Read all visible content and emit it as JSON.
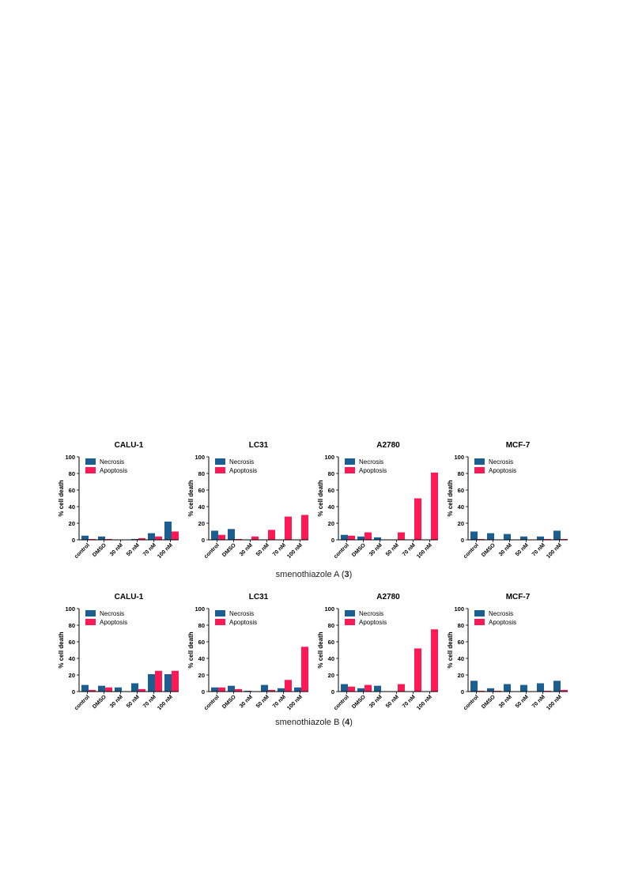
{
  "colors": {
    "necrosis": "#1b5e92",
    "apoptosis": "#ff1a55",
    "axis": "#000000"
  },
  "groups": [
    {
      "caption_text": "smenothiazole A (",
      "caption_bold": "3",
      "caption_close": ")"
    },
    {
      "caption_text": "smenothiazole B (",
      "caption_bold": "4",
      "caption_close": ")"
    }
  ],
  "chart_data": [
    {
      "type": "bar",
      "title": "CALU-1",
      "ylabel": "% cell death",
      "ylim": [
        0,
        100
      ],
      "yticks": [
        0,
        20,
        40,
        60,
        80,
        100
      ],
      "categories": [
        "control",
        "DMSO",
        "30 nM",
        "50 nM",
        "70 nM",
        "100 nM"
      ],
      "legend": "top-left",
      "series": [
        {
          "name": "Necrosis",
          "values": [
            5,
            4,
            0,
            1,
            8,
            22
          ]
        },
        {
          "name": "Apoptosis",
          "values": [
            1,
            1,
            0,
            2,
            4,
            10
          ]
        }
      ]
    },
    {
      "type": "bar",
      "title": "LC31",
      "ylabel": "% cell death",
      "ylim": [
        0,
        100
      ],
      "yticks": [
        0,
        20,
        40,
        60,
        80,
        100
      ],
      "categories": [
        "control",
        "DMSO",
        "30 nM",
        "50 nM",
        "70 nM",
        "100 nM"
      ],
      "legend": "top-left",
      "series": [
        {
          "name": "Necrosis",
          "values": [
            11,
            13,
            0,
            0,
            0,
            0
          ]
        },
        {
          "name": "Apoptosis",
          "values": [
            6,
            1,
            4,
            12,
            28,
            30
          ]
        }
      ]
    },
    {
      "type": "bar",
      "title": "A2780",
      "ylabel": "% cell death",
      "ylim": [
        0,
        100
      ],
      "yticks": [
        0,
        20,
        40,
        60,
        80,
        100
      ],
      "categories": [
        "control",
        "DMSO",
        "30 nM",
        "50 nM",
        "70 nM",
        "100 nM"
      ],
      "legend": "top-left",
      "series": [
        {
          "name": "Necrosis",
          "values": [
            6,
            4,
            3,
            0,
            0,
            0
          ]
        },
        {
          "name": "Apoptosis",
          "values": [
            5,
            9,
            0,
            9,
            50,
            81
          ]
        }
      ]
    },
    {
      "type": "bar",
      "title": "MCF-7",
      "ylabel": "% cell death",
      "ylim": [
        0,
        100
      ],
      "yticks": [
        0,
        20,
        40,
        60,
        80,
        100
      ],
      "categories": [
        "control",
        "DMSO",
        "30 nM",
        "50 nM",
        "70 nM",
        "100 nM"
      ],
      "legend": "top-left",
      "series": [
        {
          "name": "Necrosis",
          "values": [
            10,
            8,
            7,
            4,
            4,
            11
          ]
        },
        {
          "name": "Apoptosis",
          "values": [
            1,
            0,
            0,
            0,
            1,
            1
          ]
        }
      ]
    },
    {
      "type": "bar",
      "title": "CALU-1",
      "ylabel": "% cell death",
      "ylim": [
        0,
        100
      ],
      "yticks": [
        0,
        20,
        40,
        60,
        80,
        100
      ],
      "categories": [
        "control",
        "DMSO",
        "30 nM",
        "50 nM",
        "70 nM",
        "100 nM"
      ],
      "legend": "top-left",
      "series": [
        {
          "name": "Necrosis",
          "values": [
            8,
            7,
            5,
            10,
            21,
            21
          ]
        },
        {
          "name": "Apoptosis",
          "values": [
            2,
            5,
            0,
            3,
            25,
            25
          ]
        }
      ]
    },
    {
      "type": "bar",
      "title": "LC31",
      "ylabel": "% cell death",
      "ylim": [
        0,
        100
      ],
      "yticks": [
        0,
        20,
        40,
        60,
        80,
        100
      ],
      "categories": [
        "control",
        "DMSO",
        "30 nM",
        "50 nM",
        "70 nM",
        "100 nM"
      ],
      "legend": "top-left",
      "series": [
        {
          "name": "Necrosis",
          "values": [
            5,
            7,
            1,
            8,
            4,
            5
          ]
        },
        {
          "name": "Apoptosis",
          "values": [
            5,
            3,
            0,
            2,
            14,
            54
          ]
        }
      ]
    },
    {
      "type": "bar",
      "title": "A2780",
      "ylabel": "% cell death",
      "ylim": [
        0,
        100
      ],
      "yticks": [
        0,
        20,
        40,
        60,
        80,
        100
      ],
      "categories": [
        "control",
        "DMSO",
        "30 nM",
        "50 nM",
        "70 nM",
        "100 nM"
      ],
      "legend": "top-left",
      "series": [
        {
          "name": "Necrosis",
          "values": [
            9,
            4,
            7,
            0,
            0,
            0
          ]
        },
        {
          "name": "Apoptosis",
          "values": [
            6,
            8,
            0,
            9,
            52,
            75
          ]
        }
      ]
    },
    {
      "type": "bar",
      "title": "MCF-7",
      "ylabel": "% cell death",
      "ylim": [
        0,
        100
      ],
      "yticks": [
        0,
        20,
        40,
        60,
        80,
        100
      ],
      "categories": [
        "control",
        "DMSO",
        "30 nM",
        "50 nM",
        "70 nM",
        "100 nM"
      ],
      "legend": "top-left",
      "series": [
        {
          "name": "Necrosis",
          "values": [
            13,
            4,
            9,
            8,
            10,
            13
          ]
        },
        {
          "name": "Apoptosis",
          "values": [
            1,
            1,
            0,
            0,
            1,
            2
          ]
        }
      ]
    }
  ]
}
